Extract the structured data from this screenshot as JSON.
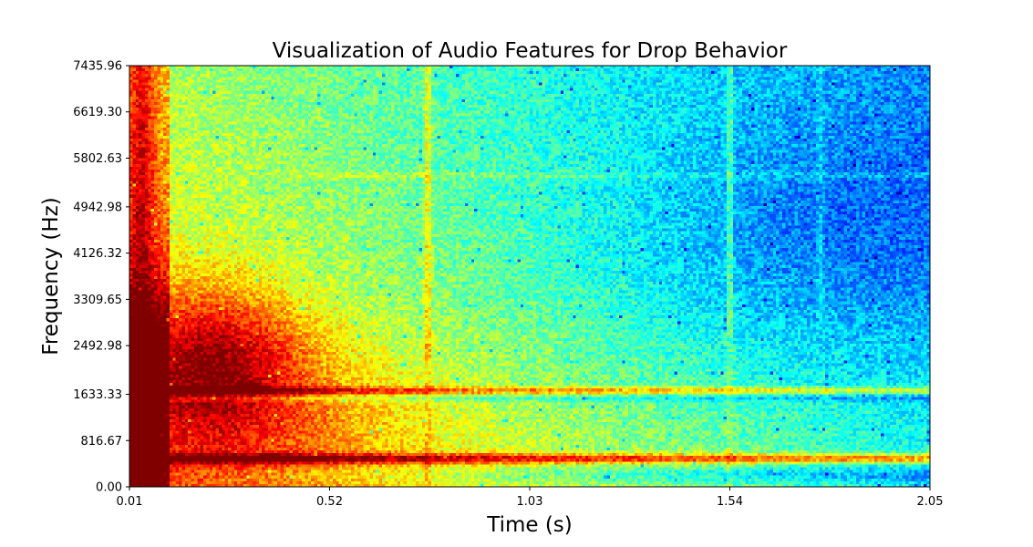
{
  "chart_data": {
    "type": "heatmap",
    "title": "Visualization of Audio Features for Drop Behavior",
    "xlabel": "Time (s)",
    "ylabel": "Frequency (Hz)",
    "xlim": [
      0.01,
      2.05
    ],
    "ylim": [
      0.0,
      7435.96
    ],
    "x_ticks": [
      0.01,
      0.52,
      1.03,
      1.54,
      2.05
    ],
    "x_tick_labels": [
      "0.01",
      "0.52",
      "1.03",
      "1.54",
      "2.05"
    ],
    "y_ticks": [
      0.0,
      816.67,
      1633.33,
      2492.98,
      3309.65,
      4126.32,
      4942.98,
      5802.63,
      6619.3,
      7435.96
    ],
    "y_tick_labels": [
      "0.00",
      "816.67",
      "1633.33",
      "2492.98",
      "3309.65",
      "4126.32",
      "4942.98",
      "5802.63",
      "6619.30",
      "7435.96"
    ],
    "colormap": "jet",
    "grid": false,
    "legend": "none",
    "features": {
      "onset_times_s": [
        0.04,
        0.77,
        1.54
      ],
      "peak_intensity_region": {
        "time_s": [
          0.1,
          0.5
        ],
        "freq_hz": [
          1633.33,
          3309.65
        ]
      },
      "sustained_bands_hz": [
        500,
        1700
      ],
      "dim_band_hz": 5500
    }
  }
}
